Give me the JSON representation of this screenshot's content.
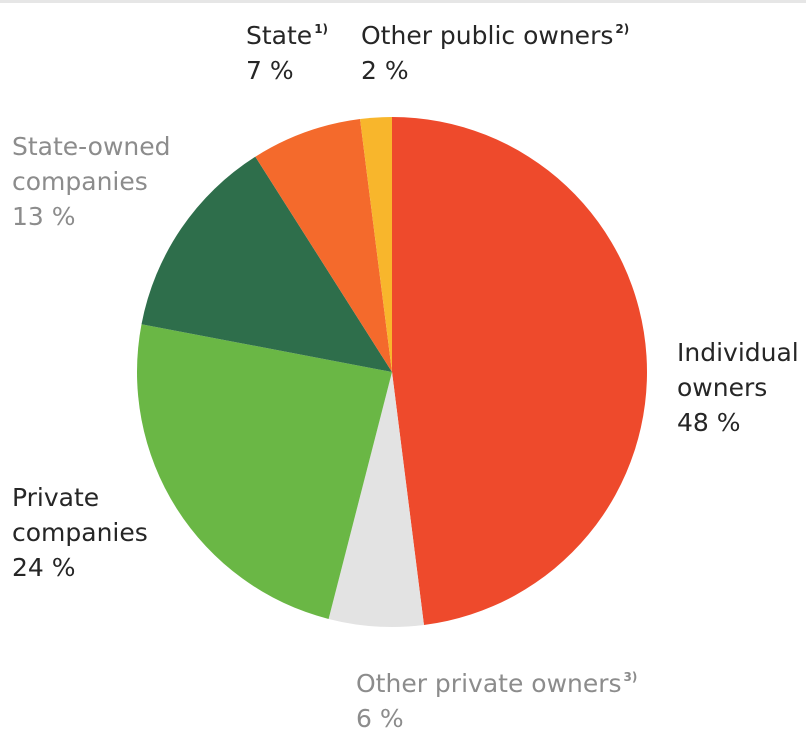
{
  "chart_data": {
    "type": "pie",
    "start_angle_deg": 0,
    "direction": "clockwise",
    "slices": [
      {
        "name": "Individual owners",
        "value": 48,
        "color": "#ee4a2c"
      },
      {
        "name": "Other private owners",
        "value": 6,
        "color": "#e3e3e3"
      },
      {
        "name": "Private companies",
        "value": 24,
        "color": "#6ab745"
      },
      {
        "name": "State-owned companies",
        "value": 13,
        "color": "#2e6e4b"
      },
      {
        "name": "State",
        "value": 7,
        "color": "#f46a2c"
      },
      {
        "name": "Other public owners",
        "value": 2,
        "color": "#f8b62c"
      }
    ]
  },
  "labels": {
    "state": {
      "line1": "State",
      "note": "1)",
      "pct": "7 %"
    },
    "other_public": {
      "line1": "Other public owners",
      "note": "2)",
      "pct": "2 %"
    },
    "state_owned": {
      "line1": "State-owned",
      "line2": "companies",
      "pct": "13 %"
    },
    "individual": {
      "line1": "Individual",
      "line2": "owners",
      "pct": "48 %"
    },
    "private_companies": {
      "line1": "Private",
      "line2": "companies",
      "pct": "24 %"
    },
    "other_private": {
      "line1": "Other private owners",
      "note": "3)",
      "pct": "6 %"
    }
  }
}
